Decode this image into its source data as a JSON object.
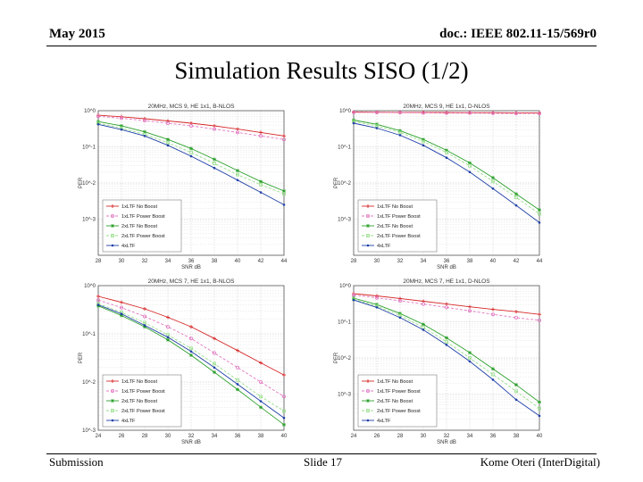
{
  "header": {
    "left": "May 2015",
    "right": "doc.: IEEE 802.11-15/569r0"
  },
  "slide_title": "Simulation Results SISO (1/2)",
  "footer": {
    "left": "Submission",
    "center": "Slide 17",
    "right": "Kome Oteri (InterDigital)"
  },
  "colors": {
    "no_boost_1x": "#d62728",
    "power_boost_1x": "#e377c2",
    "no_boost_2x": "#2ca02c",
    "power_boost_2x": "#98df8a",
    "four_ltf": "#1f3fa8"
  },
  "chart_data": [
    {
      "type": "line",
      "title": "20MHz, MCS 9, HE 1x1, B-NLOS",
      "xlabel": "SNR dB",
      "ylabel": "PER",
      "xlim": [
        28,
        44
      ],
      "xticks": [
        28,
        30,
        32,
        34,
        36,
        38,
        40,
        42,
        44
      ],
      "ylim": [
        0.0001,
        1
      ],
      "yticks": [
        1,
        0.1,
        0.01,
        0.001
      ],
      "ytick_labels": [
        "10^0",
        "10^-1",
        "10^-2",
        "10^-3"
      ],
      "grid": true,
      "legend_position": "bottom-left",
      "x": [
        28,
        30,
        32,
        34,
        36,
        38,
        40,
        42,
        44
      ],
      "series": [
        {
          "name": "1xLTF No Boost",
          "values": [
            0.75,
            0.68,
            0.6,
            0.52,
            0.45,
            0.38,
            0.31,
            0.25,
            0.2
          ]
        },
        {
          "name": "1xLTF Power Boost",
          "values": [
            0.7,
            0.62,
            0.53,
            0.45,
            0.38,
            0.31,
            0.25,
            0.2,
            0.16
          ]
        },
        {
          "name": "2xLTF No Boost",
          "values": [
            0.5,
            0.38,
            0.26,
            0.16,
            0.09,
            0.045,
            0.022,
            0.011,
            0.006
          ]
        },
        {
          "name": "2xLTF Power Boost",
          "values": [
            0.45,
            0.33,
            0.22,
            0.13,
            0.07,
            0.035,
            0.017,
            0.009,
            0.005
          ]
        },
        {
          "name": "4xLTF",
          "values": [
            0.42,
            0.3,
            0.2,
            0.11,
            0.055,
            0.026,
            0.012,
            0.0055,
            0.0025
          ]
        }
      ]
    },
    {
      "type": "line",
      "title": "20MHz, MCS 9, HE 1x1, D-NLOS",
      "xlabel": "SNR dB",
      "ylabel": "PER",
      "xlim": [
        28,
        44
      ],
      "xticks": [
        28,
        30,
        32,
        34,
        36,
        38,
        40,
        42,
        44
      ],
      "ylim": [
        0.0001,
        1
      ],
      "yticks": [
        1,
        0.1,
        0.01,
        0.001
      ],
      "ytick_labels": [
        "10^0",
        "10^-1",
        "10^-2",
        "10^-3"
      ],
      "grid": true,
      "legend_position": "bottom-left",
      "x": [
        28,
        30,
        32,
        34,
        36,
        38,
        40,
        42,
        44
      ],
      "series": [
        {
          "name": "1xLTF No Boost",
          "values": [
            0.92,
            0.91,
            0.9,
            0.9,
            0.89,
            0.88,
            0.88,
            0.87,
            0.87
          ]
        },
        {
          "name": "1xLTF Power Boost",
          "values": [
            0.9,
            0.89,
            0.88,
            0.87,
            0.86,
            0.86,
            0.85,
            0.84,
            0.84
          ]
        },
        {
          "name": "2xLTF No Boost",
          "values": [
            0.55,
            0.42,
            0.28,
            0.16,
            0.08,
            0.036,
            0.014,
            0.005,
            0.0018
          ]
        },
        {
          "name": "2xLTF Power Boost",
          "values": [
            0.5,
            0.38,
            0.25,
            0.14,
            0.07,
            0.03,
            0.011,
            0.004,
            0.0014
          ]
        },
        {
          "name": "4xLTF",
          "values": [
            0.45,
            0.33,
            0.21,
            0.11,
            0.05,
            0.02,
            0.007,
            0.0024,
            0.0008
          ]
        }
      ]
    },
    {
      "type": "line",
      "title": "20MHz, MCS 7, HE 1x1, B-NLOS",
      "xlabel": "SNR dB",
      "ylabel": "PER",
      "xlim": [
        24,
        40
      ],
      "xticks": [
        24,
        26,
        28,
        30,
        32,
        34,
        36,
        38,
        40
      ],
      "ylim": [
        0.001,
        1
      ],
      "yticks": [
        1,
        0.1,
        0.01,
        0.001
      ],
      "ytick_labels": [
        "10^0",
        "10^-1",
        "10^-2",
        "10^-3"
      ],
      "grid": true,
      "legend_position": "bottom-left",
      "x": [
        24,
        26,
        28,
        30,
        32,
        34,
        36,
        38,
        40
      ],
      "series": [
        {
          "name": "1xLTF No Boost",
          "values": [
            0.6,
            0.45,
            0.33,
            0.22,
            0.14,
            0.08,
            0.045,
            0.025,
            0.014
          ]
        },
        {
          "name": "1xLTF Power Boost",
          "values": [
            0.5,
            0.35,
            0.23,
            0.14,
            0.08,
            0.04,
            0.02,
            0.01,
            0.005
          ]
        },
        {
          "name": "2xLTF No Boost",
          "values": [
            0.38,
            0.24,
            0.14,
            0.075,
            0.036,
            0.016,
            0.007,
            0.003,
            0.0013
          ]
        },
        {
          "name": "2xLTF Power Boost",
          "values": [
            0.42,
            0.28,
            0.17,
            0.095,
            0.05,
            0.024,
            0.011,
            0.005,
            0.0025
          ]
        },
        {
          "name": "4xLTF",
          "values": [
            0.4,
            0.26,
            0.15,
            0.085,
            0.043,
            0.02,
            0.009,
            0.004,
            0.0018
          ]
        }
      ]
    },
    {
      "type": "line",
      "title": "20MHz, MCS 7, HE 1x1, D-NLOS",
      "xlabel": "SNR dB",
      "ylabel": "PER",
      "xlim": [
        24,
        40
      ],
      "xticks": [
        24,
        26,
        28,
        30,
        32,
        34,
        36,
        38,
        40
      ],
      "ylim": [
        0.0001,
        1
      ],
      "yticks": [
        1,
        0.1,
        0.01,
        0.001
      ],
      "ytick_labels": [
        "10^0",
        "10^-1",
        "10^-2",
        "10^-3"
      ],
      "grid": true,
      "legend_position": "bottom-left",
      "x": [
        24,
        26,
        28,
        30,
        32,
        34,
        36,
        38,
        40
      ],
      "series": [
        {
          "name": "1xLTF No Boost",
          "values": [
            0.6,
            0.52,
            0.44,
            0.37,
            0.31,
            0.26,
            0.22,
            0.19,
            0.16
          ]
        },
        {
          "name": "1xLTF Power Boost",
          "values": [
            0.55,
            0.46,
            0.38,
            0.31,
            0.25,
            0.2,
            0.16,
            0.13,
            0.11
          ]
        },
        {
          "name": "2xLTF No Boost",
          "values": [
            0.45,
            0.3,
            0.17,
            0.085,
            0.036,
            0.014,
            0.005,
            0.0018,
            0.0006
          ]
        },
        {
          "name": "2xLTF Power Boost",
          "values": [
            0.42,
            0.27,
            0.15,
            0.07,
            0.028,
            0.01,
            0.0035,
            0.0012,
            0.0004
          ]
        },
        {
          "name": "4xLTF",
          "values": [
            0.4,
            0.25,
            0.13,
            0.06,
            0.023,
            0.008,
            0.0025,
            0.0007,
            0.00025
          ]
        }
      ]
    }
  ]
}
